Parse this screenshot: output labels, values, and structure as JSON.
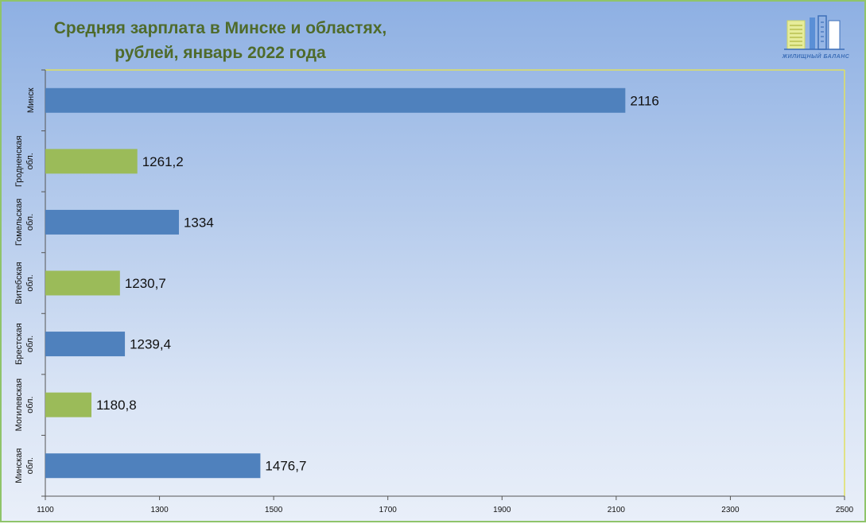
{
  "title_line1": "Средняя зарплата в Минске и областях,",
  "title_line2": "рублей, январь 2022 года",
  "logo_text": "ЖИЛИЩНЫЙ БАЛАНС",
  "colors": {
    "blue": "#4f81bd",
    "green": "#9bbb59",
    "title": "#4f6b2b",
    "frame": "#8fc46a"
  },
  "chart_data": {
    "type": "bar",
    "orientation": "horizontal",
    "categories": [
      [
        "Минск"
      ],
      [
        "Гродненская",
        "обл."
      ],
      [
        "Гомельская",
        "обл."
      ],
      [
        "Витебская",
        "обл."
      ],
      [
        "Брестская",
        "обл."
      ],
      [
        "Могилевская",
        "обл."
      ],
      [
        "Минская",
        "обл."
      ]
    ],
    "values": [
      2116,
      1261.2,
      1334,
      1230.7,
      1239.4,
      1180.8,
      1476.7
    ],
    "value_labels": [
      "2116",
      "1261,2",
      "1334",
      "1230,7",
      "1239,4",
      "1180,8",
      "1476,7"
    ],
    "bar_colors": [
      "#4f81bd",
      "#9bbb59",
      "#4f81bd",
      "#9bbb59",
      "#4f81bd",
      "#9bbb59",
      "#4f81bd"
    ],
    "xlim": [
      1100,
      2500
    ],
    "xticks": [
      1100,
      1300,
      1500,
      1700,
      1900,
      2100,
      2300,
      2500
    ],
    "grid": false,
    "legend": "none"
  }
}
